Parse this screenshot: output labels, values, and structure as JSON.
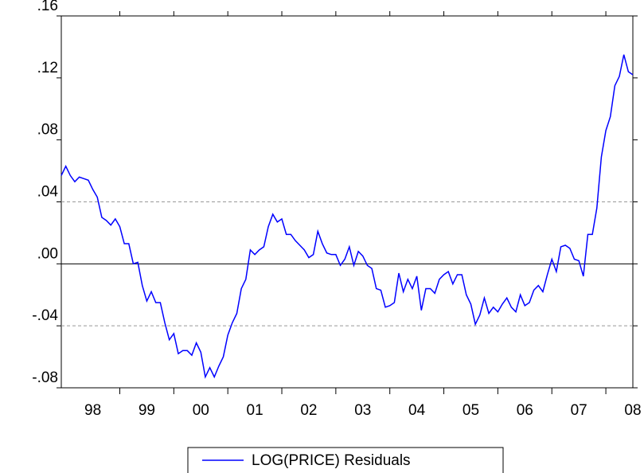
{
  "chart_data": {
    "type": "line",
    "categories": [
      null,
      null,
      null,
      null,
      null,
      null,
      null,
      "98",
      null,
      null,
      null,
      null,
      null,
      null,
      null,
      null,
      null,
      null,
      null,
      "99",
      null,
      null,
      null,
      null,
      null,
      null,
      null,
      null,
      null,
      null,
      null,
      "00",
      null,
      null,
      null,
      null,
      null,
      null,
      null,
      null,
      null,
      null,
      null,
      "01",
      null,
      null,
      null,
      null,
      null,
      null,
      null,
      null,
      null,
      null,
      null,
      "02",
      null,
      null,
      null,
      null,
      null,
      null,
      null,
      null,
      null,
      null,
      null,
      "03",
      null,
      null,
      null,
      null,
      null,
      null,
      null,
      null,
      null,
      null,
      null,
      "04",
      null,
      null,
      null,
      null,
      null,
      null,
      null,
      null,
      null,
      null,
      null,
      "05",
      null,
      null,
      null,
      null,
      null,
      null,
      null,
      null,
      null,
      null,
      null,
      "06",
      null,
      null,
      null,
      null,
      null,
      null,
      null,
      null,
      null,
      null,
      null,
      "07",
      null,
      null,
      null,
      null,
      null,
      null,
      null,
      null,
      null,
      null,
      null,
      "08"
    ],
    "series": [
      {
        "name": "LOG(PRICE) Residuals",
        "color": "#0000ff",
        "values": [
          0.057,
          0.063,
          0.057,
          0.053,
          0.056,
          0.055,
          0.054,
          0.048,
          0.043,
          0.03,
          0.028,
          0.025,
          0.029,
          0.024,
          0.013,
          0.013,
          0.0,
          0.001,
          -0.014,
          -0.024,
          -0.018,
          -0.025,
          -0.025,
          -0.038,
          -0.049,
          -0.045,
          -0.058,
          -0.056,
          -0.056,
          -0.059,
          -0.051,
          -0.057,
          -0.073,
          -0.067,
          -0.073,
          -0.066,
          -0.06,
          -0.046,
          -0.038,
          -0.032,
          -0.016,
          -0.01,
          0.009,
          0.006,
          0.009,
          0.011,
          0.024,
          0.032,
          0.027,
          0.029,
          0.019,
          0.019,
          0.015,
          0.012,
          0.009,
          0.004,
          0.006,
          0.021,
          0.013,
          0.007,
          0.006,
          0.006,
          -0.001,
          0.003,
          0.011,
          -0.001,
          0.008,
          0.005,
          -0.001,
          -0.003,
          -0.016,
          -0.017,
          -0.028,
          -0.027,
          -0.025,
          -0.006,
          -0.018,
          -0.01,
          -0.016,
          -0.008,
          -0.03,
          -0.016,
          -0.016,
          -0.019,
          -0.01,
          -0.007,
          -0.005,
          -0.013,
          -0.007,
          -0.007,
          -0.02,
          -0.026,
          -0.039,
          -0.033,
          -0.022,
          -0.032,
          -0.028,
          -0.031,
          -0.026,
          -0.022,
          -0.028,
          -0.031,
          -0.02,
          -0.027,
          -0.025,
          -0.017,
          -0.014,
          -0.018,
          -0.007,
          0.003,
          -0.005,
          0.011,
          0.012,
          0.01,
          0.003,
          0.002,
          -0.008,
          0.019,
          0.019,
          0.036,
          0.069,
          0.086,
          0.095,
          0.115,
          0.121,
          0.135,
          0.124,
          0.122
        ]
      }
    ],
    "ylim": [
      -0.08,
      0.16
    ],
    "yticks": [
      {
        "value": -0.08,
        "label": "-.08"
      },
      {
        "value": -0.04,
        "label": "-.04"
      },
      {
        "value": 0,
        "label": ".00"
      },
      {
        "value": 0.04,
        "label": ".04"
      },
      {
        "value": 0.08,
        "label": ".08"
      },
      {
        "value": 0.12,
        "label": ".12"
      },
      {
        "value": 0.16,
        "label": ".16"
      }
    ],
    "ref_lines": [
      -0.04,
      0.04
    ],
    "zero_line": true,
    "legend": "bottom"
  }
}
